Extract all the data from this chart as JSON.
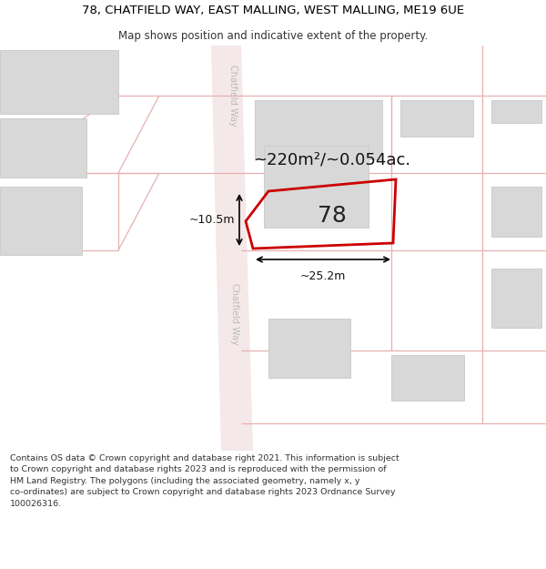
{
  "title": "78, CHATFIELD WAY, EAST MALLING, WEST MALLING, ME19 6UE",
  "subtitle": "Map shows position and indicative extent of the property.",
  "footer": "Contains OS data © Crown copyright and database right 2021. This information is subject\nto Crown copyright and database rights 2023 and is reproduced with the permission of\nHM Land Registry. The polygons (including the associated geometry, namely x, y\nco-ordinates) are subject to Crown copyright and database rights 2023 Ordnance Survey\n100026316.",
  "area_label": "~220m²/~0.054ac.",
  "plot_number": "78",
  "width_label": "~25.2m",
  "height_label": "~10.5m",
  "road_fill": "#f5e8e8",
  "road_line": "#e8b0b0",
  "building_fill": "#d8d8d8",
  "building_edge": "#c8c8c8",
  "plot_edge": "#cc0000",
  "street_name": "Chatfield Way",
  "title_fontsize": 9.5,
  "subtitle_fontsize": 8.5,
  "footer_fontsize": 6.8
}
